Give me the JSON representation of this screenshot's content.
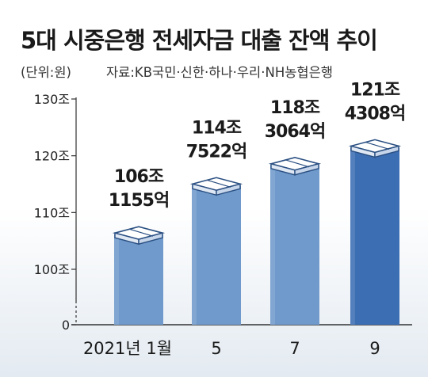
{
  "title": "5대 시중은행 전세자금 대출 잔액 추이",
  "unit_note": "(단위:원)",
  "source_note": "자료:KB국민·신한·하나·우리·NH농협은행",
  "colors": {
    "bar": "#6f9acb",
    "bar_highlight": "#3c6eb4",
    "axis": "#333333",
    "text": "#1a1a1a"
  },
  "chart_data": {
    "type": "bar",
    "title": "5대 시중은행 전세자금 대출 잔액 추이",
    "xlabel": "",
    "ylabel": "",
    "categories": [
      "2021년 1월",
      "5",
      "7",
      "9"
    ],
    "values": [
      106.1155,
      114.7522,
      118.3064,
      121.4308
    ],
    "value_labels": [
      [
        "106조",
        "1155억"
      ],
      [
        "114조",
        "7522억"
      ],
      [
        "118조",
        "3064억"
      ],
      [
        "121조",
        "4308억"
      ]
    ],
    "y_ticks": [
      {
        "value": 0,
        "label": "0"
      },
      {
        "value": 100,
        "label": "100조"
      },
      {
        "value": 110,
        "label": "110조"
      },
      {
        "value": 120,
        "label": "120조"
      },
      {
        "value": 130,
        "label": "130조"
      }
    ],
    "axis_break": true,
    "highlight_index": 3,
    "grid": false,
    "legend": "none"
  }
}
